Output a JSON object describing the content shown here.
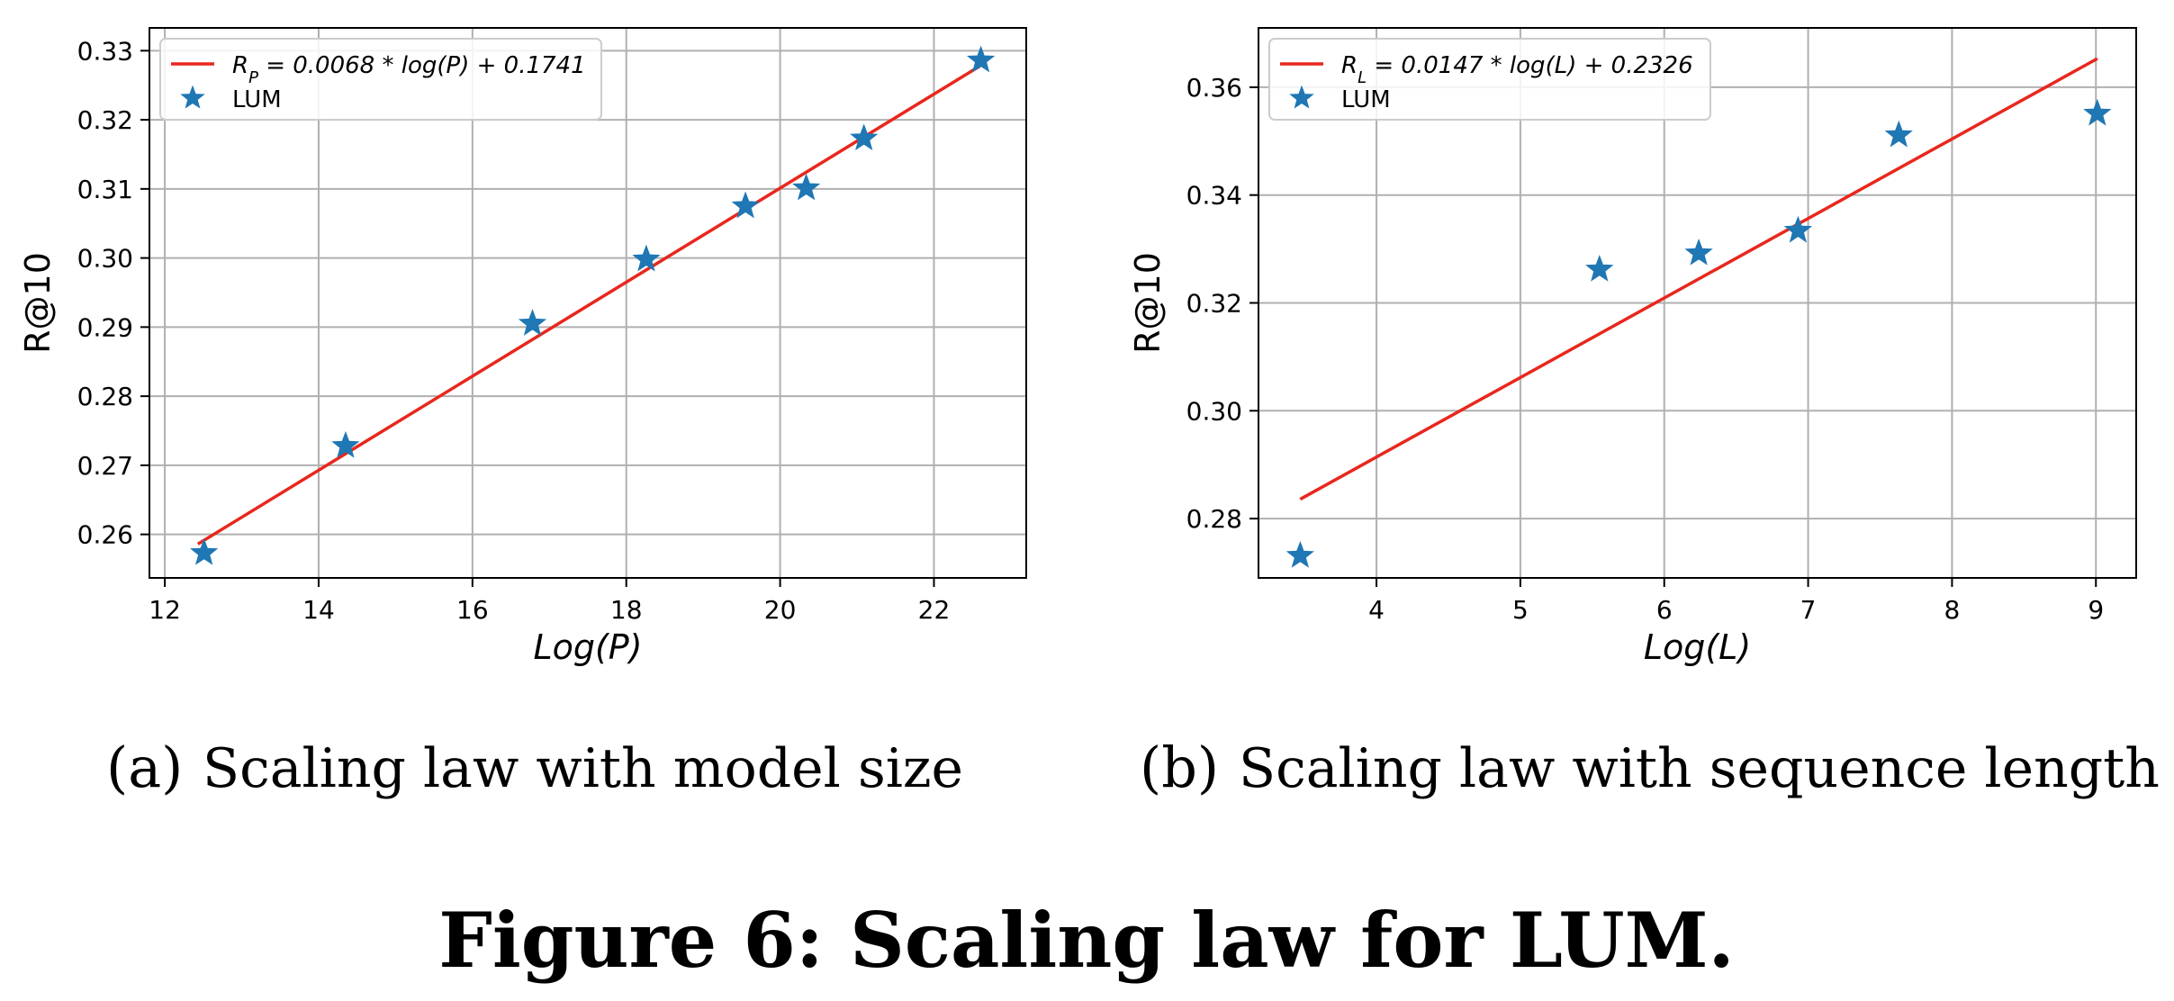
{
  "figure": {
    "caption": "Figure 6: Scaling law for LUM."
  },
  "chart_data": [
    {
      "type": "scatter",
      "panel_label": "(a)",
      "subcaption": "Scaling law with model size",
      "xlabel": "Log(P)",
      "ylabel": "R@10",
      "xlim": [
        11.8,
        23.2
      ],
      "ylim": [
        0.2537,
        0.3333
      ],
      "xticks": [
        12,
        14,
        16,
        18,
        20,
        22
      ],
      "yticks": [
        0.26,
        0.27,
        0.28,
        0.29,
        0.3,
        0.31,
        0.32,
        0.33
      ],
      "ytick_format": 2,
      "grid": true,
      "legend_position": "top-left",
      "series": [
        {
          "name": "R_P = 0.0068 * log(P) + 0.1741",
          "legend_main": "R",
          "legend_sub": "P",
          "legend_rest": " = 0.0068 * log(P) + 0.1741",
          "kind": "line",
          "color": "#e8271d",
          "x": [
            12.43,
            22.6
          ],
          "y": [
            0.2586,
            0.3278
          ]
        },
        {
          "name": "LUM",
          "kind": "marker",
          "marker": "star",
          "color": "#1f77b4",
          "x": [
            12.51,
            14.35,
            16.78,
            18.26,
            19.55,
            20.34,
            21.09,
            22.61
          ],
          "y": [
            0.2573,
            0.2728,
            0.2905,
            0.2998,
            0.3075,
            0.3101,
            0.3173,
            0.3286
          ]
        }
      ]
    },
    {
      "type": "scatter",
      "panel_label": "(b)",
      "subcaption": "Scaling law with sequence length",
      "xlabel": "Log(L)",
      "ylabel": "R@10",
      "xlim": [
        3.18,
        9.28
      ],
      "ylim": [
        0.269,
        0.371
      ],
      "xticks": [
        4,
        5,
        6,
        7,
        8,
        9
      ],
      "yticks": [
        0.28,
        0.3,
        0.32,
        0.34,
        0.36
      ],
      "ytick_format": 2,
      "grid": true,
      "legend_position": "top-left",
      "series": [
        {
          "name": "R_L = 0.0147 * log(L) + 0.2326",
          "legend_main": "R",
          "legend_sub": "L",
          "legend_rest": " = 0.0147 * log(L) + 0.2326",
          "kind": "line",
          "color": "#e8271d",
          "x": [
            3.47,
            9.01
          ],
          "y": [
            0.2836,
            0.3653
          ]
        },
        {
          "name": "LUM",
          "kind": "marker",
          "marker": "star",
          "color": "#1f77b4",
          "x": [
            3.47,
            5.55,
            6.24,
            6.93,
            7.63,
            9.01
          ],
          "y": [
            0.2731,
            0.3262,
            0.3292,
            0.3334,
            0.3511,
            0.3551
          ]
        }
      ]
    }
  ]
}
